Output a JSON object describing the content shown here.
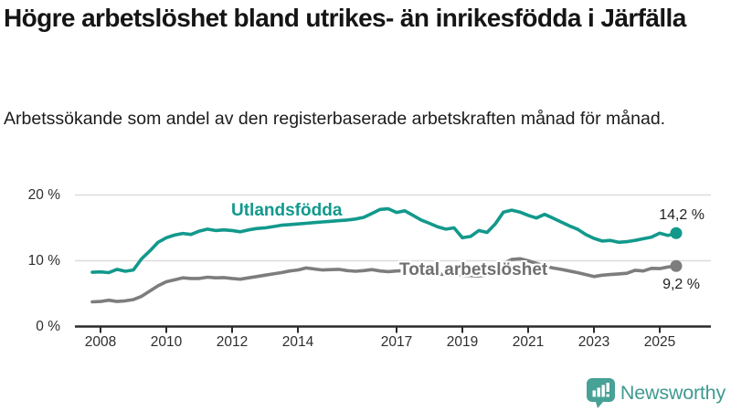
{
  "header": {
    "title": "Högre arbetslöshet bland utrikes- än inrikesfödda i Järfälla",
    "subtitle": "Arbetssökande som andel av den registerbaserade arbetskraften månad för månad."
  },
  "chart_data": {
    "type": "line",
    "title": "Högre arbetslöshet bland utrikes- än inrikesfödda i Järfälla",
    "subtitle": "Arbetssökande som andel av den registerbaserade arbetskraften månad för månad.",
    "x_unit": "year (decimal; monthly time series, values sampled quarterly from chart)",
    "x_start": 2007.75,
    "x_step": 0.25,
    "xlim": [
      2007.2,
      2026.5
    ],
    "ylim": [
      0,
      20
    ],
    "grid": "horizontal gridlines at 10 % and 20 %, baseline axis at 0 %",
    "legend_position": "inline labels on lines; end-value labels at right",
    "x_ticks": [
      {
        "v": 2008,
        "label": "2008"
      },
      {
        "v": 2010,
        "label": "2010"
      },
      {
        "v": 2012,
        "label": "2012"
      },
      {
        "v": 2014,
        "label": "2014"
      },
      {
        "v": 2017,
        "label": "2017"
      },
      {
        "v": 2019,
        "label": "2019"
      },
      {
        "v": 2021,
        "label": "2021"
      },
      {
        "v": 2023,
        "label": "2023"
      },
      {
        "v": 2025,
        "label": "2025"
      }
    ],
    "y_ticks": [
      {
        "v": 0,
        "label": "0 %"
      },
      {
        "v": 10,
        "label": "10 %"
      },
      {
        "v": 20,
        "label": "20 %"
      }
    ],
    "series": [
      {
        "name": "Utlandsfödda",
        "color": "#12998c",
        "end_label": "14,2 %",
        "end_value": 14.2,
        "values": [
          8.25,
          8.3,
          8.2,
          8.7,
          8.4,
          8.6,
          10.3,
          11.5,
          12.8,
          13.5,
          13.9,
          14.15,
          14.0,
          14.5,
          14.8,
          14.6,
          14.7,
          14.6,
          14.4,
          14.7,
          14.9,
          15.0,
          15.2,
          15.4,
          15.5,
          15.6,
          15.7,
          15.8,
          15.9,
          16.0,
          16.1,
          16.2,
          16.35,
          16.6,
          17.2,
          17.8,
          17.9,
          17.35,
          17.6,
          16.9,
          16.2,
          15.7,
          15.15,
          14.8,
          15.0,
          13.5,
          13.7,
          14.6,
          14.3,
          15.6,
          17.4,
          17.7,
          17.4,
          16.9,
          16.5,
          17.05,
          16.5,
          15.9,
          15.3,
          14.8,
          14.0,
          13.4,
          13.0,
          13.1,
          12.8,
          12.9,
          13.1,
          13.35,
          13.6,
          14.2,
          13.85,
          14.2
        ]
      },
      {
        "name": "Total arbetslöshet",
        "color": "#7d7d7d",
        "end_label": "9,2 %",
        "end_value": 9.2,
        "values": [
          3.75,
          3.8,
          4.0,
          3.8,
          3.9,
          4.1,
          4.6,
          5.4,
          6.2,
          6.8,
          7.1,
          7.4,
          7.3,
          7.3,
          7.5,
          7.4,
          7.45,
          7.3,
          7.2,
          7.4,
          7.6,
          7.8,
          8.0,
          8.2,
          8.45,
          8.6,
          8.9,
          8.75,
          8.6,
          8.65,
          8.7,
          8.5,
          8.4,
          8.5,
          8.65,
          8.45,
          8.35,
          8.45,
          8.5,
          8.3,
          8.15,
          8.1,
          8.0,
          7.9,
          7.95,
          7.8,
          7.75,
          7.7,
          7.85,
          8.3,
          9.6,
          10.2,
          10.3,
          10.0,
          9.6,
          9.2,
          8.9,
          8.7,
          8.45,
          8.2,
          7.9,
          7.6,
          7.8,
          7.9,
          8.0,
          8.1,
          8.55,
          8.45,
          8.85,
          8.8,
          9.05,
          9.2
        ]
      }
    ],
    "style": {
      "grid_color": "#dcdcdc",
      "axis_color": "#2a2a2a",
      "tick_label_color": "#2e2e2e"
    }
  },
  "footer": {
    "brand": "Newsworthy",
    "brand_color": "#3f9a91"
  }
}
